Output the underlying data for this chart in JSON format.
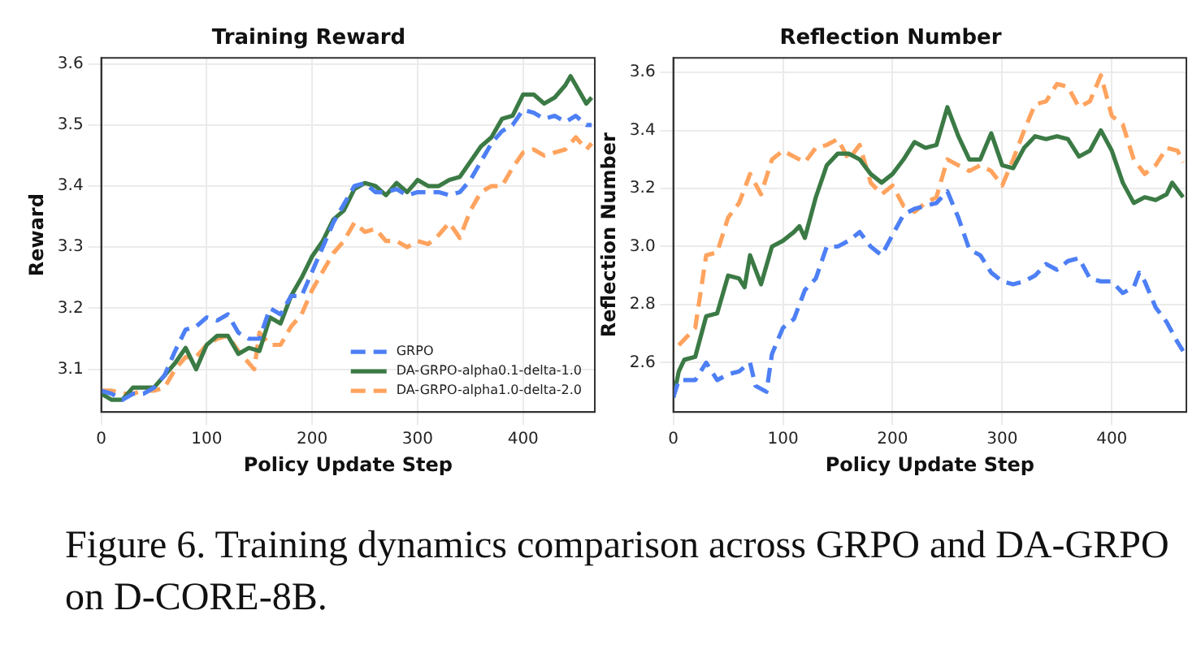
{
  "chart_data": [
    {
      "type": "line",
      "title": "Training Reward",
      "xlabel": "Policy Update Step",
      "ylabel": "Reward",
      "xlim": [
        0,
        468
      ],
      "xticks": [
        0,
        100,
        200,
        300,
        400
      ],
      "ylim": [
        3.03,
        3.61
      ],
      "yticks": [
        3.1,
        3.2,
        3.3,
        3.4,
        3.5,
        3.6
      ],
      "grid": true,
      "legend": "bottom right",
      "annotations": [
        "Figure 6. Training dynamics comparison across GRPO and DA-GRPO on D-CORE-8B."
      ],
      "series": [
        {
          "name": "GRPO",
          "color": "#4d7ff5",
          "line_style": "dashed",
          "x": [
            0,
            10,
            20,
            30,
            40,
            50,
            60,
            70,
            80,
            90,
            100,
            110,
            120,
            130,
            140,
            150,
            160,
            170,
            180,
            190,
            200,
            210,
            220,
            230,
            240,
            250,
            260,
            270,
            280,
            290,
            300,
            310,
            320,
            330,
            340,
            350,
            360,
            370,
            380,
            390,
            400,
            410,
            420,
            430,
            440,
            450,
            460,
            465
          ],
          "values": [
            3.065,
            3.06,
            3.05,
            3.06,
            3.06,
            3.07,
            3.09,
            3.13,
            3.165,
            3.17,
            3.185,
            3.18,
            3.19,
            3.16,
            3.15,
            3.15,
            3.2,
            3.19,
            3.22,
            3.22,
            3.26,
            3.3,
            3.34,
            3.37,
            3.4,
            3.405,
            3.39,
            3.39,
            3.395,
            3.385,
            3.39,
            3.39,
            3.39,
            3.385,
            3.39,
            3.41,
            3.44,
            3.47,
            3.49,
            3.5,
            3.525,
            3.52,
            3.51,
            3.515,
            3.505,
            3.515,
            3.5,
            3.5
          ]
        },
        {
          "name": "DA-GRPO-alpha0.1-delta-1.0",
          "color": "#3b7a45",
          "line_style": "solid",
          "x": [
            0,
            10,
            20,
            30,
            40,
            50,
            60,
            70,
            80,
            90,
            100,
            110,
            120,
            130,
            140,
            150,
            160,
            170,
            180,
            190,
            200,
            210,
            220,
            230,
            240,
            250,
            260,
            270,
            280,
            290,
            300,
            310,
            320,
            330,
            340,
            350,
            360,
            370,
            380,
            390,
            400,
            410,
            420,
            430,
            440,
            445,
            450,
            460,
            465
          ],
          "values": [
            3.06,
            3.05,
            3.05,
            3.07,
            3.07,
            3.07,
            3.09,
            3.11,
            3.135,
            3.1,
            3.14,
            3.155,
            3.155,
            3.125,
            3.135,
            3.13,
            3.185,
            3.175,
            3.22,
            3.25,
            3.285,
            3.31,
            3.345,
            3.36,
            3.395,
            3.405,
            3.4,
            3.385,
            3.405,
            3.39,
            3.41,
            3.4,
            3.4,
            3.41,
            3.415,
            3.44,
            3.465,
            3.48,
            3.51,
            3.515,
            3.55,
            3.55,
            3.535,
            3.545,
            3.565,
            3.58,
            3.565,
            3.535,
            3.545
          ]
        },
        {
          "name": "DA-GRPO-alpha1.0-delta-2.0",
          "color": "#ffa35e",
          "line_style": "dashed",
          "x": [
            0,
            10,
            20,
            30,
            40,
            50,
            60,
            70,
            80,
            90,
            100,
            110,
            120,
            130,
            140,
            145,
            150,
            160,
            170,
            180,
            190,
            200,
            210,
            220,
            230,
            240,
            250,
            260,
            270,
            280,
            290,
            300,
            310,
            320,
            330,
            340,
            350,
            360,
            370,
            380,
            390,
            400,
            410,
            420,
            430,
            440,
            450,
            460,
            465
          ],
          "values": [
            3.065,
            3.065,
            3.06,
            3.06,
            3.065,
            3.065,
            3.07,
            3.1,
            3.12,
            3.12,
            3.14,
            3.15,
            3.155,
            3.13,
            3.11,
            3.1,
            3.16,
            3.14,
            3.14,
            3.17,
            3.19,
            3.23,
            3.26,
            3.29,
            3.31,
            3.34,
            3.325,
            3.33,
            3.31,
            3.31,
            3.3,
            3.31,
            3.305,
            3.32,
            3.34,
            3.315,
            3.36,
            3.39,
            3.4,
            3.4,
            3.43,
            3.455,
            3.46,
            3.45,
            3.455,
            3.46,
            3.48,
            3.46,
            3.47
          ]
        }
      ]
    },
    {
      "type": "line",
      "title": "Reflection Number",
      "xlabel": "Policy Update Step",
      "ylabel": "Reflection Number",
      "xlim": [
        0,
        468
      ],
      "xticks": [
        0,
        100,
        200,
        300,
        400
      ],
      "ylim": [
        2.43,
        3.65
      ],
      "yticks": [
        2.6,
        2.8,
        {
          "value": 3,
          "label": "3.0"
        },
        3.2,
        3.4,
        3.6
      ],
      "grid": true,
      "series": [
        {
          "color": "#4d7ff5",
          "line_style": "dashed",
          "x": [
            0,
            5,
            10,
            20,
            30,
            40,
            50,
            60,
            70,
            75,
            85,
            90,
            100,
            110,
            120,
            130,
            140,
            150,
            160,
            170,
            180,
            190,
            200,
            210,
            220,
            230,
            240,
            250,
            260,
            270,
            280,
            290,
            300,
            310,
            320,
            330,
            340,
            350,
            360,
            370,
            380,
            390,
            400,
            410,
            420,
            425,
            430,
            440,
            450,
            460,
            465
          ],
          "values": [
            2.48,
            2.54,
            2.54,
            2.54,
            2.6,
            2.54,
            2.56,
            2.57,
            2.6,
            2.52,
            2.5,
            2.63,
            2.72,
            2.75,
            2.85,
            2.89,
            3.0,
            3.0,
            3.02,
            3.05,
            3.0,
            2.97,
            3.04,
            3.11,
            3.13,
            3.14,
            3.15,
            3.19,
            3.1,
            2.99,
            2.97,
            2.91,
            2.88,
            2.87,
            2.88,
            2.9,
            2.94,
            2.92,
            2.95,
            2.96,
            2.89,
            2.88,
            2.88,
            2.84,
            2.86,
            2.91,
            2.88,
            2.79,
            2.74,
            2.67,
            2.64
          ]
        },
        {
          "color": "#3b7a45",
          "line_style": "solid",
          "x": [
            0,
            5,
            10,
            20,
            30,
            40,
            50,
            60,
            65,
            70,
            80,
            90,
            100,
            110,
            115,
            120,
            130,
            140,
            150,
            160,
            170,
            180,
            190,
            200,
            210,
            220,
            230,
            240,
            250,
            260,
            270,
            280,
            290,
            300,
            310,
            320,
            330,
            340,
            350,
            360,
            370,
            380,
            390,
            400,
            410,
            420,
            430,
            440,
            450,
            455,
            465
          ],
          "values": [
            2.48,
            2.57,
            2.61,
            2.62,
            2.76,
            2.77,
            2.9,
            2.89,
            2.86,
            2.97,
            2.87,
            3.0,
            3.02,
            3.05,
            3.07,
            3.03,
            3.17,
            3.28,
            3.32,
            3.32,
            3.3,
            3.25,
            3.22,
            3.25,
            3.3,
            3.36,
            3.34,
            3.35,
            3.48,
            3.38,
            3.3,
            3.3,
            3.39,
            3.28,
            3.27,
            3.34,
            3.38,
            3.37,
            3.38,
            3.37,
            3.31,
            3.33,
            3.4,
            3.33,
            3.22,
            3.15,
            3.17,
            3.16,
            3.18,
            3.22,
            3.17
          ]
        },
        {
          "color": "#ffa35e",
          "line_style": "dashed",
          "x": [
            5,
            10,
            20,
            30,
            40,
            50,
            60,
            70,
            80,
            90,
            100,
            110,
            120,
            130,
            140,
            150,
            160,
            170,
            180,
            190,
            200,
            210,
            220,
            230,
            240,
            250,
            260,
            270,
            280,
            290,
            300,
            310,
            320,
            330,
            340,
            350,
            360,
            370,
            380,
            390,
            400,
            410,
            420,
            430,
            440,
            450,
            460,
            465
          ],
          "values": [
            2.66,
            2.68,
            2.72,
            2.97,
            2.98,
            3.1,
            3.15,
            3.25,
            3.18,
            3.3,
            3.33,
            3.31,
            3.29,
            3.34,
            3.35,
            3.37,
            3.3,
            3.35,
            3.22,
            3.18,
            3.21,
            3.14,
            3.12,
            3.15,
            3.17,
            3.3,
            3.28,
            3.26,
            3.28,
            3.26,
            3.21,
            3.3,
            3.4,
            3.49,
            3.5,
            3.56,
            3.55,
            3.48,
            3.5,
            3.59,
            3.45,
            3.42,
            3.3,
            3.25,
            3.28,
            3.34,
            3.33,
            3.29
          ]
        }
      ]
    }
  ]
}
